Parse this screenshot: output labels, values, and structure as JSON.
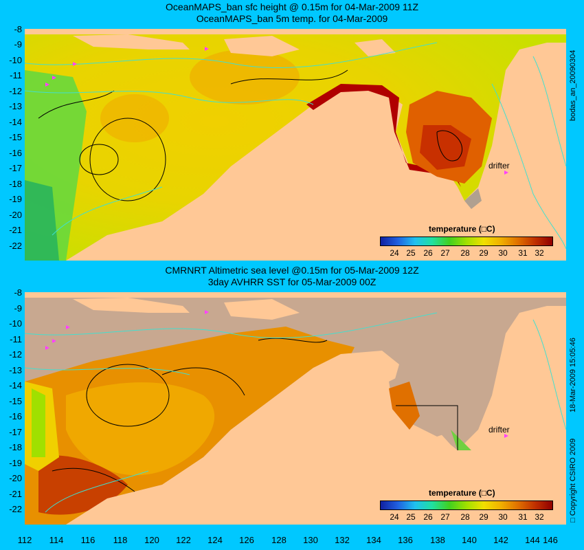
{
  "top_panel": {
    "title_line1": "OceanMAPS_ban sfc height @ 0.15m for 04-Mar-2009 11Z",
    "title_line2": "OceanMAPS_ban 5m temp. for 04-Mar-2009",
    "side_label": "bodas_an_20090304",
    "drifter_label": "drifter",
    "colorbar_title": "temperature (□C)"
  },
  "bottom_panel": {
    "title_line1": "CMRNRT Altimetric sea level  @0.15m  for 05-Mar-2009 12Z",
    "title_line2": "3day AVHRR SST for 05-Mar-2009 00Z",
    "side_label": "18-Mar-2009 15:05:46",
    "copyright": "□ Copyright CSIRO 2009",
    "drifter_label": "drifter",
    "colorbar_title": "temperature (□C)"
  },
  "y_ticks": [
    "-8",
    "-9",
    "-10",
    "-11",
    "-12",
    "-13",
    "-14",
    "-15",
    "-16",
    "-17",
    "-18",
    "-19",
    "-20",
    "-21",
    "-22"
  ],
  "x_ticks": [
    "112",
    "114",
    "116",
    "118",
    "120",
    "122",
    "124",
    "126",
    "128",
    "130",
    "132",
    "134",
    "136",
    "138",
    "140",
    "142",
    "144",
    "146"
  ],
  "colorbar_ticks": [
    "24",
    "25",
    "26",
    "27",
    "28",
    "29",
    "30",
    "31",
    "32"
  ],
  "colors": {
    "background": "#00c8ff",
    "land": "#ffc896",
    "no_data": "#c8a890",
    "contour": "#40e0d0",
    "drifter": "#ff40ff"
  }
}
